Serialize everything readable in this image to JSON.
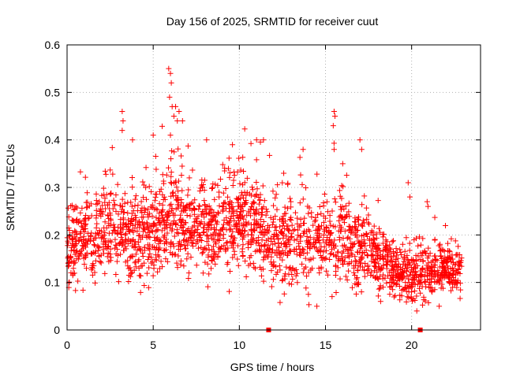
{
  "chart_data": {
    "type": "scatter",
    "title": "Day 156 of 2025, SRMTID for receiver cuut",
    "xlabel": "GPS time / hours",
    "ylabel": "SRMTID / TECUs",
    "xlim": [
      0,
      24
    ],
    "ylim": [
      0,
      0.6
    ],
    "xticks": [
      0,
      5,
      10,
      15,
      20
    ],
    "yticks": [
      0,
      0.1,
      0.2,
      0.3,
      0.4,
      0.5,
      0.6
    ],
    "xtick_labels": [
      "0",
      "5",
      "10",
      "15",
      "20"
    ],
    "ytick_labels": [
      "0",
      "0.1",
      "0.2",
      "0.3",
      "0.4",
      "0.5",
      "0.6"
    ],
    "grid": true,
    "marker": "plus",
    "color": "#ff0000",
    "x_range_data": [
      0,
      22.9
    ],
    "envelope": [
      {
        "x": 0.0,
        "center": 0.16,
        "spread": 0.045
      },
      {
        "x": 1.0,
        "center": 0.19,
        "spread": 0.055
      },
      {
        "x": 2.0,
        "center": 0.21,
        "spread": 0.06
      },
      {
        "x": 3.0,
        "center": 0.21,
        "spread": 0.06
      },
      {
        "x": 4.0,
        "center": 0.19,
        "spread": 0.055
      },
      {
        "x": 5.0,
        "center": 0.2,
        "spread": 0.06
      },
      {
        "x": 6.0,
        "center": 0.24,
        "spread": 0.065
      },
      {
        "x": 7.0,
        "center": 0.22,
        "spread": 0.06
      },
      {
        "x": 8.0,
        "center": 0.21,
        "spread": 0.055
      },
      {
        "x": 9.0,
        "center": 0.22,
        "spread": 0.06
      },
      {
        "x": 10.0,
        "center": 0.23,
        "spread": 0.06
      },
      {
        "x": 11.0,
        "center": 0.22,
        "spread": 0.06
      },
      {
        "x": 12.0,
        "center": 0.18,
        "spread": 0.055
      },
      {
        "x": 13.0,
        "center": 0.18,
        "spread": 0.055
      },
      {
        "x": 14.0,
        "center": 0.19,
        "spread": 0.06
      },
      {
        "x": 15.0,
        "center": 0.2,
        "spread": 0.06
      },
      {
        "x": 16.0,
        "center": 0.19,
        "spread": 0.06
      },
      {
        "x": 17.0,
        "center": 0.17,
        "spread": 0.055
      },
      {
        "x": 18.0,
        "center": 0.16,
        "spread": 0.045
      },
      {
        "x": 19.0,
        "center": 0.12,
        "spread": 0.035
      },
      {
        "x": 20.0,
        "center": 0.11,
        "spread": 0.035
      },
      {
        "x": 21.0,
        "center": 0.11,
        "spread": 0.035
      },
      {
        "x": 22.0,
        "center": 0.13,
        "spread": 0.035
      },
      {
        "x": 22.9,
        "center": 0.12,
        "spread": 0.03
      }
    ],
    "peaks": [
      {
        "x": 3.2,
        "y": 0.46
      },
      {
        "x": 3.25,
        "y": 0.44
      },
      {
        "x": 3.2,
        "y": 0.42
      },
      {
        "x": 3.8,
        "y": 0.4
      },
      {
        "x": 5.0,
        "y": 0.41
      },
      {
        "x": 5.9,
        "y": 0.55
      },
      {
        "x": 6.0,
        "y": 0.54
      },
      {
        "x": 6.05,
        "y": 0.52
      },
      {
        "x": 5.95,
        "y": 0.49
      },
      {
        "x": 6.1,
        "y": 0.47
      },
      {
        "x": 6.3,
        "y": 0.47
      },
      {
        "x": 6.5,
        "y": 0.46
      },
      {
        "x": 6.2,
        "y": 0.45
      },
      {
        "x": 6.4,
        "y": 0.44
      },
      {
        "x": 6.7,
        "y": 0.44
      },
      {
        "x": 6.0,
        "y": 0.41
      },
      {
        "x": 8.1,
        "y": 0.4
      },
      {
        "x": 9.6,
        "y": 0.39
      },
      {
        "x": 11.0,
        "y": 0.4
      },
      {
        "x": 11.4,
        "y": 0.4
      },
      {
        "x": 13.7,
        "y": 0.38
      },
      {
        "x": 15.5,
        "y": 0.46
      },
      {
        "x": 15.55,
        "y": 0.45
      },
      {
        "x": 15.45,
        "y": 0.43
      },
      {
        "x": 15.5,
        "y": 0.38
      },
      {
        "x": 16.0,
        "y": 0.35
      },
      {
        "x": 17.0,
        "y": 0.4
      },
      {
        "x": 17.1,
        "y": 0.38
      },
      {
        "x": 19.8,
        "y": 0.31
      },
      {
        "x": 19.9,
        "y": 0.28
      },
      {
        "x": 20.9,
        "y": 0.27
      },
      {
        "x": 20.95,
        "y": 0.26
      },
      {
        "x": 14.5,
        "y": 0.05
      },
      {
        "x": 18.2,
        "y": 0.06
      },
      {
        "x": 20.3,
        "y": 0.04
      },
      {
        "x": 21.6,
        "y": 0.05
      }
    ],
    "zero_markers": [
      {
        "x": 11.7,
        "y": 0.0
      },
      {
        "x": 20.5,
        "y": 0.0
      }
    ]
  }
}
